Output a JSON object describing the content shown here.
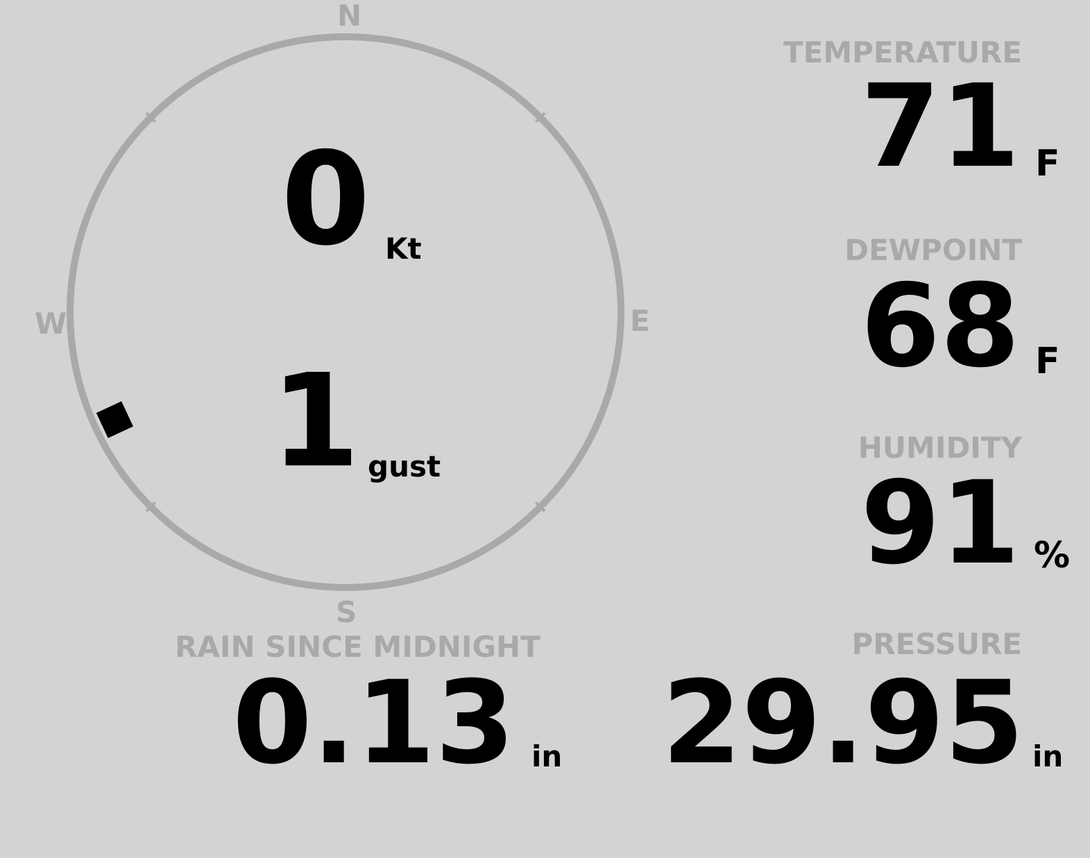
{
  "compass": {
    "north": "N",
    "south": "S",
    "east": "E",
    "west": "W",
    "wind_direction_deg": 245
  },
  "wind": {
    "speed": "0",
    "speed_unit": "Kt",
    "gust": "1",
    "gust_unit": "gust"
  },
  "temperature": {
    "label": "TEMPERATURE",
    "value": "71",
    "unit": "F"
  },
  "dewpoint": {
    "label": "DEWPOINT",
    "value": "68",
    "unit": "F"
  },
  "humidity": {
    "label": "HUMIDITY",
    "value": "91",
    "unit": "%"
  },
  "rain": {
    "label": "RAIN SINCE MIDNIGHT",
    "value": "0.13",
    "unit": "in"
  },
  "pressure": {
    "label": "PRESSURE",
    "value": "29.95",
    "unit": "in"
  },
  "colors": {
    "background": "#d3d3d3",
    "label": "#a9a9a9",
    "value": "#000000"
  }
}
